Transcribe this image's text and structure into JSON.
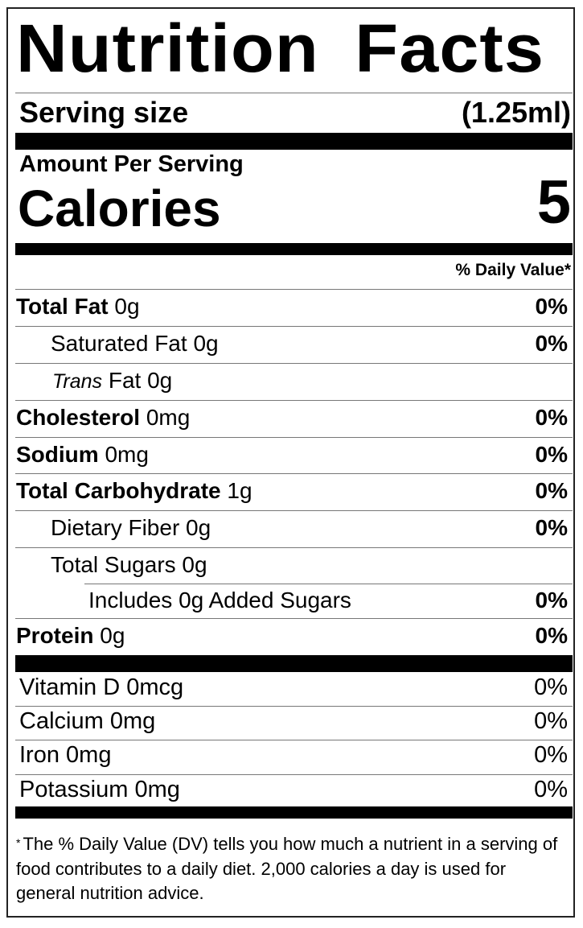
{
  "title": "Nutrition Facts",
  "serving": {
    "label": "Serving size",
    "value": "(1.25ml)"
  },
  "amount_per_serving": "Amount Per Serving",
  "calories": {
    "label": "Calories",
    "value": "5"
  },
  "daily_value_header": "% Daily Value*",
  "nutrients": [
    {
      "name": "Total Fat",
      "amount": "0g",
      "dv": "0%"
    },
    {
      "name": "Saturated Fat",
      "amount": "0g",
      "dv": "0%"
    },
    {
      "name": "Trans",
      "name_suffix": "Fat",
      "amount": "0g",
      "dv": ""
    },
    {
      "name": "Cholesterol",
      "amount": "0mg",
      "dv": "0%"
    },
    {
      "name": "Sodium",
      "amount": "0mg",
      "dv": "0%"
    },
    {
      "name": "Total Carbohydrate",
      "amount": "1g",
      "dv": "0%"
    },
    {
      "name": "Dietary Fiber",
      "amount": "0g",
      "dv": "0%"
    },
    {
      "name": "Total Sugars",
      "amount": "0g",
      "dv": ""
    },
    {
      "name": "Includes 0g Added Sugars",
      "amount": "",
      "dv": "0%"
    },
    {
      "name": "Protein",
      "amount": "0g",
      "dv": "0%"
    }
  ],
  "vitamins": [
    {
      "name": "Vitamin D",
      "amount": "0mcg",
      "dv": "0%"
    },
    {
      "name": "Calcium",
      "amount": "0mg",
      "dv": "0%"
    },
    {
      "name": "Iron",
      "amount": "0mg",
      "dv": "0%"
    },
    {
      "name": "Potassium",
      "amount": "0mg",
      "dv": "0%"
    }
  ],
  "footnote": {
    "asterisk": "*",
    "text": "The % Daily Value (DV) tells you how much a nutrient in a serving of food contributes to a daily diet. 2,000 calories a day is used for general nutrition advice."
  }
}
